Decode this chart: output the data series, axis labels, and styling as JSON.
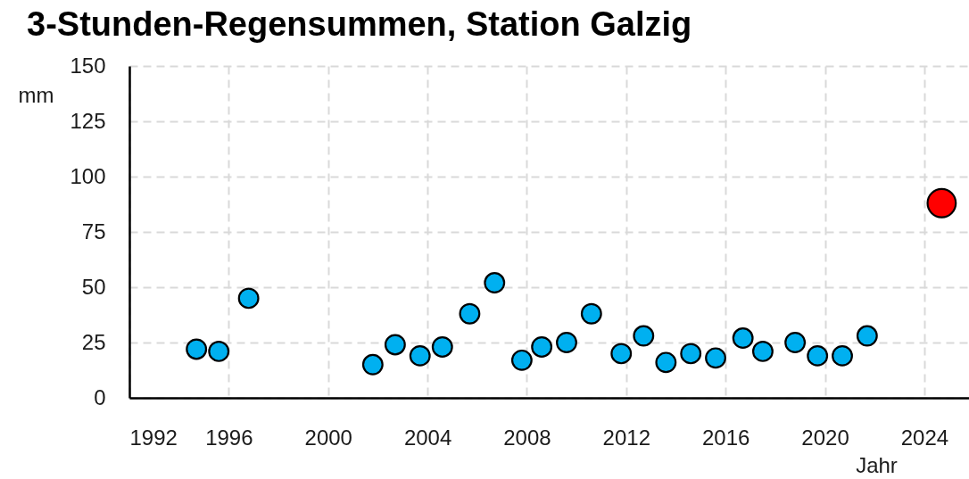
{
  "chart_data": {
    "type": "scatter",
    "title": "3-Stunden-Regensummen, Station Galzig",
    "xlabel": "Jahr",
    "ylabel": "mm",
    "xlim": [
      1992,
      2025.8
    ],
    "xticks": [
      1992,
      1996,
      2000,
      2004,
      2008,
      2012,
      2016,
      2020,
      2024
    ],
    "ylim": [
      0,
      150
    ],
    "yticks": [
      0,
      25,
      50,
      75,
      100,
      125,
      150
    ],
    "grid": true,
    "marker": "circle",
    "series": [
      {
        "color": "#00b0f0",
        "x": [
          1994.7,
          1995.6,
          1996.8,
          2001.8,
          2002.7,
          2003.7,
          2004.6,
          2005.7,
          2006.7,
          2007.8,
          2008.6,
          2009.6,
          2010.6,
          2011.8,
          2012.7,
          2013.6,
          2014.6,
          2015.6,
          2016.7,
          2017.5,
          2018.8,
          2019.7,
          2020.7,
          2021.7
        ],
        "values": [
          22,
          21,
          45,
          15,
          24,
          19,
          23,
          38,
          52,
          17,
          23,
          25,
          38,
          20,
          28,
          16,
          20,
          18,
          27,
          21,
          25,
          19,
          19,
          28
        ]
      },
      {
        "color": "#ff0000",
        "x": [
          2024.7
        ],
        "values": [
          88
        ]
      }
    ]
  }
}
